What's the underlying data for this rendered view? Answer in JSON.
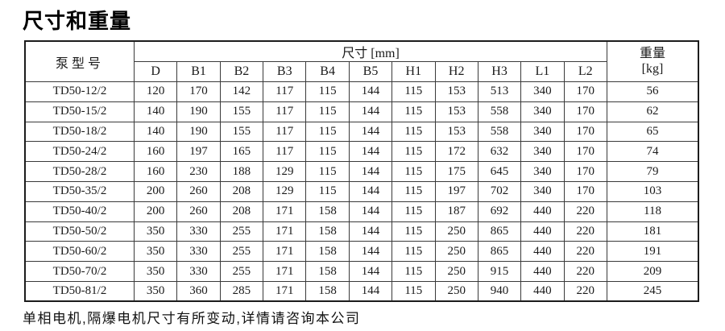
{
  "page": {
    "title": "尺寸和重量",
    "footnote": "单相电机,隔爆电机尺寸有所变动,详情请咨询本公司"
  },
  "colors": {
    "background": "#ffffff",
    "text": "#1a1a1a",
    "border_outer": "#1c1c1c",
    "border_inner": "#3a3a3a"
  },
  "table": {
    "model_header": "泵型号",
    "dims_header_label": "尺寸",
    "dims_header_unit": "[mm]",
    "weight_header_label": "重量",
    "weight_header_unit": "[kg]",
    "dim_columns": [
      "D",
      "B1",
      "B2",
      "B3",
      "B4",
      "B5",
      "H1",
      "H2",
      "H3",
      "L1",
      "L2"
    ],
    "rows": [
      {
        "model": "TD50-12/2",
        "dims": [
          120,
          170,
          142,
          117,
          115,
          144,
          115,
          153,
          513,
          340,
          170
        ],
        "weight": 56
      },
      {
        "model": "TD50-15/2",
        "dims": [
          140,
          190,
          155,
          117,
          115,
          144,
          115,
          153,
          558,
          340,
          170
        ],
        "weight": 62
      },
      {
        "model": "TD50-18/2",
        "dims": [
          140,
          190,
          155,
          117,
          115,
          144,
          115,
          153,
          558,
          340,
          170
        ],
        "weight": 65
      },
      {
        "model": "TD50-24/2",
        "dims": [
          160,
          197,
          165,
          117,
          115,
          144,
          115,
          172,
          632,
          340,
          170
        ],
        "weight": 74
      },
      {
        "model": "TD50-28/2",
        "dims": [
          160,
          230,
          188,
          129,
          115,
          144,
          115,
          175,
          645,
          340,
          170
        ],
        "weight": 79
      },
      {
        "model": "TD50-35/2",
        "dims": [
          200,
          260,
          208,
          129,
          115,
          144,
          115,
          197,
          702,
          340,
          170
        ],
        "weight": 103
      },
      {
        "model": "TD50-40/2",
        "dims": [
          200,
          260,
          208,
          171,
          158,
          144,
          115,
          187,
          692,
          440,
          220
        ],
        "weight": 118
      },
      {
        "model": "TD50-50/2",
        "dims": [
          350,
          330,
          255,
          171,
          158,
          144,
          115,
          250,
          865,
          440,
          220
        ],
        "weight": 181
      },
      {
        "model": "TD50-60/2",
        "dims": [
          350,
          330,
          255,
          171,
          158,
          144,
          115,
          250,
          865,
          440,
          220
        ],
        "weight": 191
      },
      {
        "model": "TD50-70/2",
        "dims": [
          350,
          330,
          255,
          171,
          158,
          144,
          115,
          250,
          915,
          440,
          220
        ],
        "weight": 209
      },
      {
        "model": "TD50-81/2",
        "dims": [
          350,
          360,
          285,
          171,
          158,
          144,
          115,
          250,
          940,
          440,
          220
        ],
        "weight": 245
      }
    ]
  }
}
